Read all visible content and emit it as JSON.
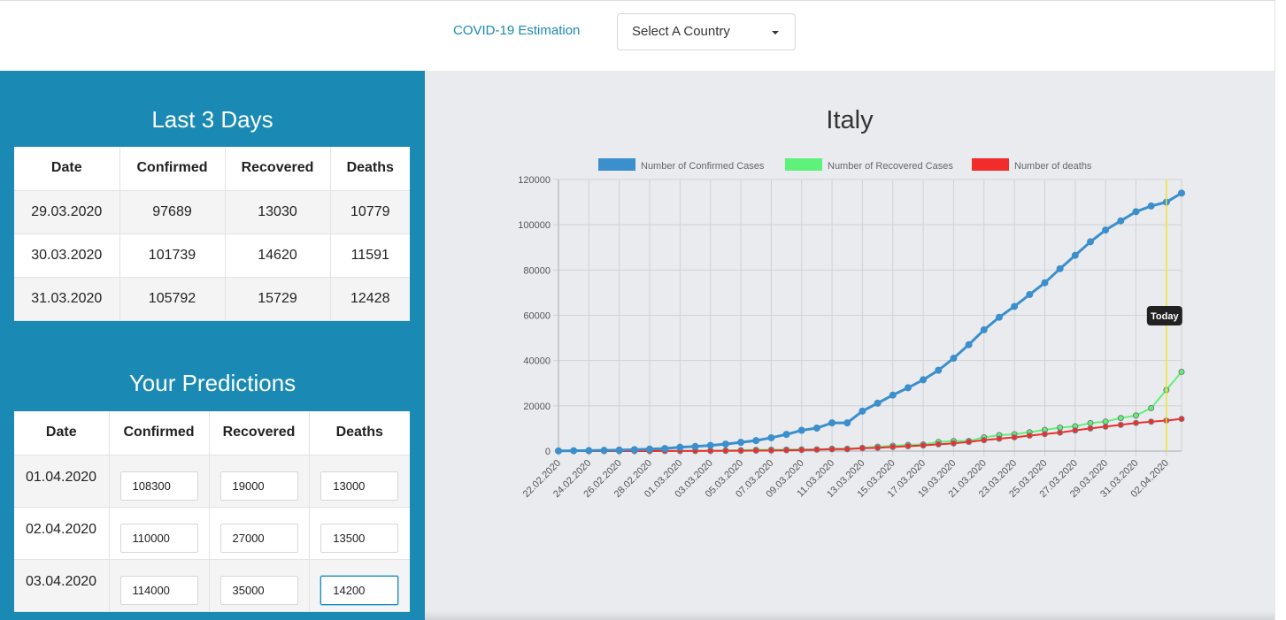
{
  "header": {
    "brand": "COVID-19 Estimation",
    "country_select": "Select A Country"
  },
  "last_days": {
    "title": "Last 3 Days",
    "columns": [
      "Date",
      "Confirmed",
      "Recovered",
      "Deaths"
    ],
    "rows": [
      [
        "29.03.2020",
        "97689",
        "13030",
        "10779"
      ],
      [
        "30.03.2020",
        "101739",
        "14620",
        "11591"
      ],
      [
        "31.03.2020",
        "105792",
        "15729",
        "12428"
      ]
    ]
  },
  "predictions": {
    "title": "Your Predictions",
    "columns": [
      "Date",
      "Confirmed",
      "Recovered",
      "Deaths"
    ],
    "rows": [
      {
        "date": "01.04.2020",
        "confirmed": "108300",
        "recovered": "19000",
        "deaths": "13000"
      },
      {
        "date": "02.04.2020",
        "confirmed": "110000",
        "recovered": "27000",
        "deaths": "13500"
      },
      {
        "date": "03.04.2020",
        "confirmed": "114000",
        "recovered": "35000",
        "deaths": "14200"
      }
    ]
  },
  "colors": {
    "primary": "#1a8ab5",
    "confirmed": "#3b8fcc",
    "recovered": "#5ff27a",
    "deaths": "#f22b2b",
    "today": "#f0e432"
  },
  "chart_data": {
    "type": "line",
    "title": "Italy",
    "legend_position": "top",
    "grid": true,
    "ylim": [
      0,
      120000
    ],
    "yticks": [
      0,
      20000,
      40000,
      60000,
      80000,
      100000,
      120000
    ],
    "x_tick_labels": [
      "22.02.2020",
      "24.02.2020",
      "26.02.2020",
      "28.02.2020",
      "01.03.2020",
      "03.03.2020",
      "05.03.2020",
      "07.03.2020",
      "09.03.2020",
      "11.03.2020",
      "13.03.2020",
      "15.03.2020",
      "17.03.2020",
      "19.03.2020",
      "21.03.2020",
      "23.03.2020",
      "25.03.2020",
      "27.03.2020",
      "29.03.2020",
      "31.03.2020",
      "02.04.2020"
    ],
    "x": [
      "22.02.2020",
      "23.02.2020",
      "24.02.2020",
      "25.02.2020",
      "26.02.2020",
      "27.02.2020",
      "28.02.2020",
      "29.02.2020",
      "01.03.2020",
      "02.03.2020",
      "03.03.2020",
      "04.03.2020",
      "05.03.2020",
      "06.03.2020",
      "07.03.2020",
      "08.03.2020",
      "09.03.2020",
      "10.03.2020",
      "11.03.2020",
      "12.03.2020",
      "13.03.2020",
      "14.03.2020",
      "15.03.2020",
      "16.03.2020",
      "17.03.2020",
      "18.03.2020",
      "19.03.2020",
      "20.03.2020",
      "21.03.2020",
      "22.03.2020",
      "23.03.2020",
      "24.03.2020",
      "25.03.2020",
      "26.03.2020",
      "27.03.2020",
      "28.03.2020",
      "29.03.2020",
      "30.03.2020",
      "31.03.2020",
      "01.04.2020",
      "02.04.2020",
      "03.04.2020"
    ],
    "annotation": {
      "label": "Today",
      "x": "02.04.2020"
    },
    "series": [
      {
        "name": "Number of Confirmed Cases",
        "values": [
          62,
          155,
          229,
          322,
          453,
          655,
          888,
          1128,
          1694,
          2036,
          2502,
          3089,
          3858,
          4636,
          5883,
          7375,
          9172,
          10149,
          12462,
          12462,
          17660,
          21157,
          24747,
          27980,
          31506,
          35713,
          41035,
          47021,
          53578,
          59138,
          63927,
          69176,
          74386,
          80589,
          86498,
          92472,
          97689,
          101739,
          105792,
          108300,
          110000,
          114000
        ]
      },
      {
        "name": "Number of Recovered Cases",
        "values": [
          1,
          2,
          1,
          1,
          3,
          45,
          46,
          46,
          83,
          149,
          160,
          276,
          414,
          523,
          589,
          622,
          724,
          724,
          1045,
          1045,
          1439,
          1966,
          2335,
          2749,
          2941,
          4025,
          4440,
          4440,
          6072,
          7024,
          7432,
          8326,
          9362,
          10361,
          10950,
          12384,
          13030,
          14620,
          15729,
          19000,
          27000,
          35000
        ]
      },
      {
        "name": "Number of deaths",
        "values": [
          2,
          3,
          7,
          10,
          12,
          17,
          21,
          29,
          34,
          52,
          79,
          107,
          148,
          197,
          233,
          366,
          463,
          631,
          827,
          827,
          1266,
          1441,
          1809,
          2158,
          2503,
          2978,
          3405,
          4032,
          4825,
          5476,
          6077,
          6820,
          7503,
          8165,
          9134,
          10023,
          10779,
          11591,
          12428,
          13000,
          13500,
          14200
        ]
      }
    ]
  }
}
